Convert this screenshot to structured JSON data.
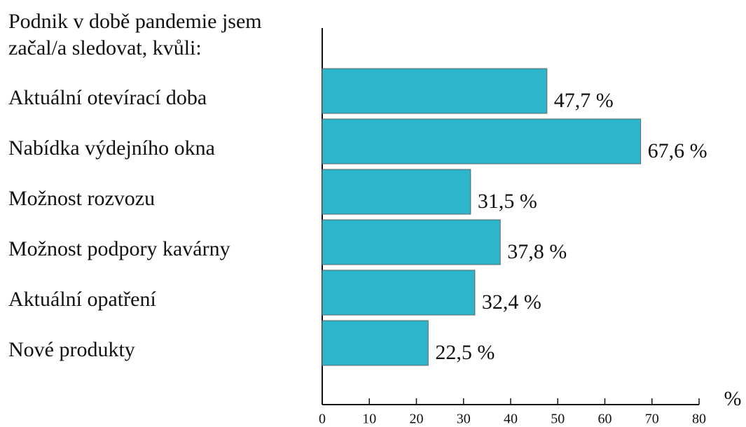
{
  "chart_data": {
    "type": "barh",
    "title": "Podnik v době pandemie jsem začal/a sledovat, kvůli:",
    "categories": [
      "Aktuální otevírací doba",
      "Nabídka výdejního okna",
      "Možnost rozvozu",
      "Možnost podpory kavárny",
      "Aktuální opatření",
      "Nové produkty"
    ],
    "values": [
      47.7,
      67.6,
      31.5,
      37.8,
      32.4,
      22.5
    ],
    "value_labels": [
      "47,7 %",
      "67,6 %",
      "31,5 %",
      "37,8 %",
      "32,4 %",
      "22,5 %"
    ],
    "color": "#2db5cc",
    "x_label": "%",
    "xlim": [
      0,
      80
    ],
    "xticks": [
      0,
      10,
      20,
      30,
      40,
      50,
      60,
      70,
      80
    ]
  }
}
